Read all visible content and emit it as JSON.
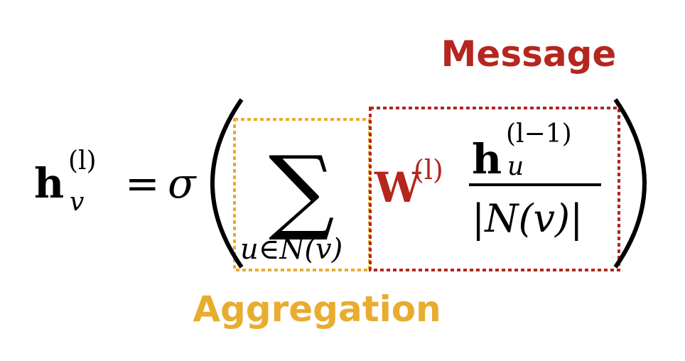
{
  "labels": {
    "message": "Message",
    "aggregation": "Aggregation"
  },
  "equation": {
    "lhs_symbol": "h",
    "lhs_subscript": "v",
    "lhs_superscript": "(l)",
    "equals": "=",
    "activation": "σ",
    "sum_symbol": "∑",
    "sum_index": "u∈N(v)",
    "weight_symbol": "W",
    "weight_superscript": "(l)",
    "numerator_symbol": "h",
    "numerator_subscript": "u",
    "numerator_superscript": "(l−1)",
    "denominator": "|N(v)|"
  },
  "colors": {
    "message": "#b5261e",
    "aggregation": "#e8ac2f",
    "text": "#000000"
  }
}
